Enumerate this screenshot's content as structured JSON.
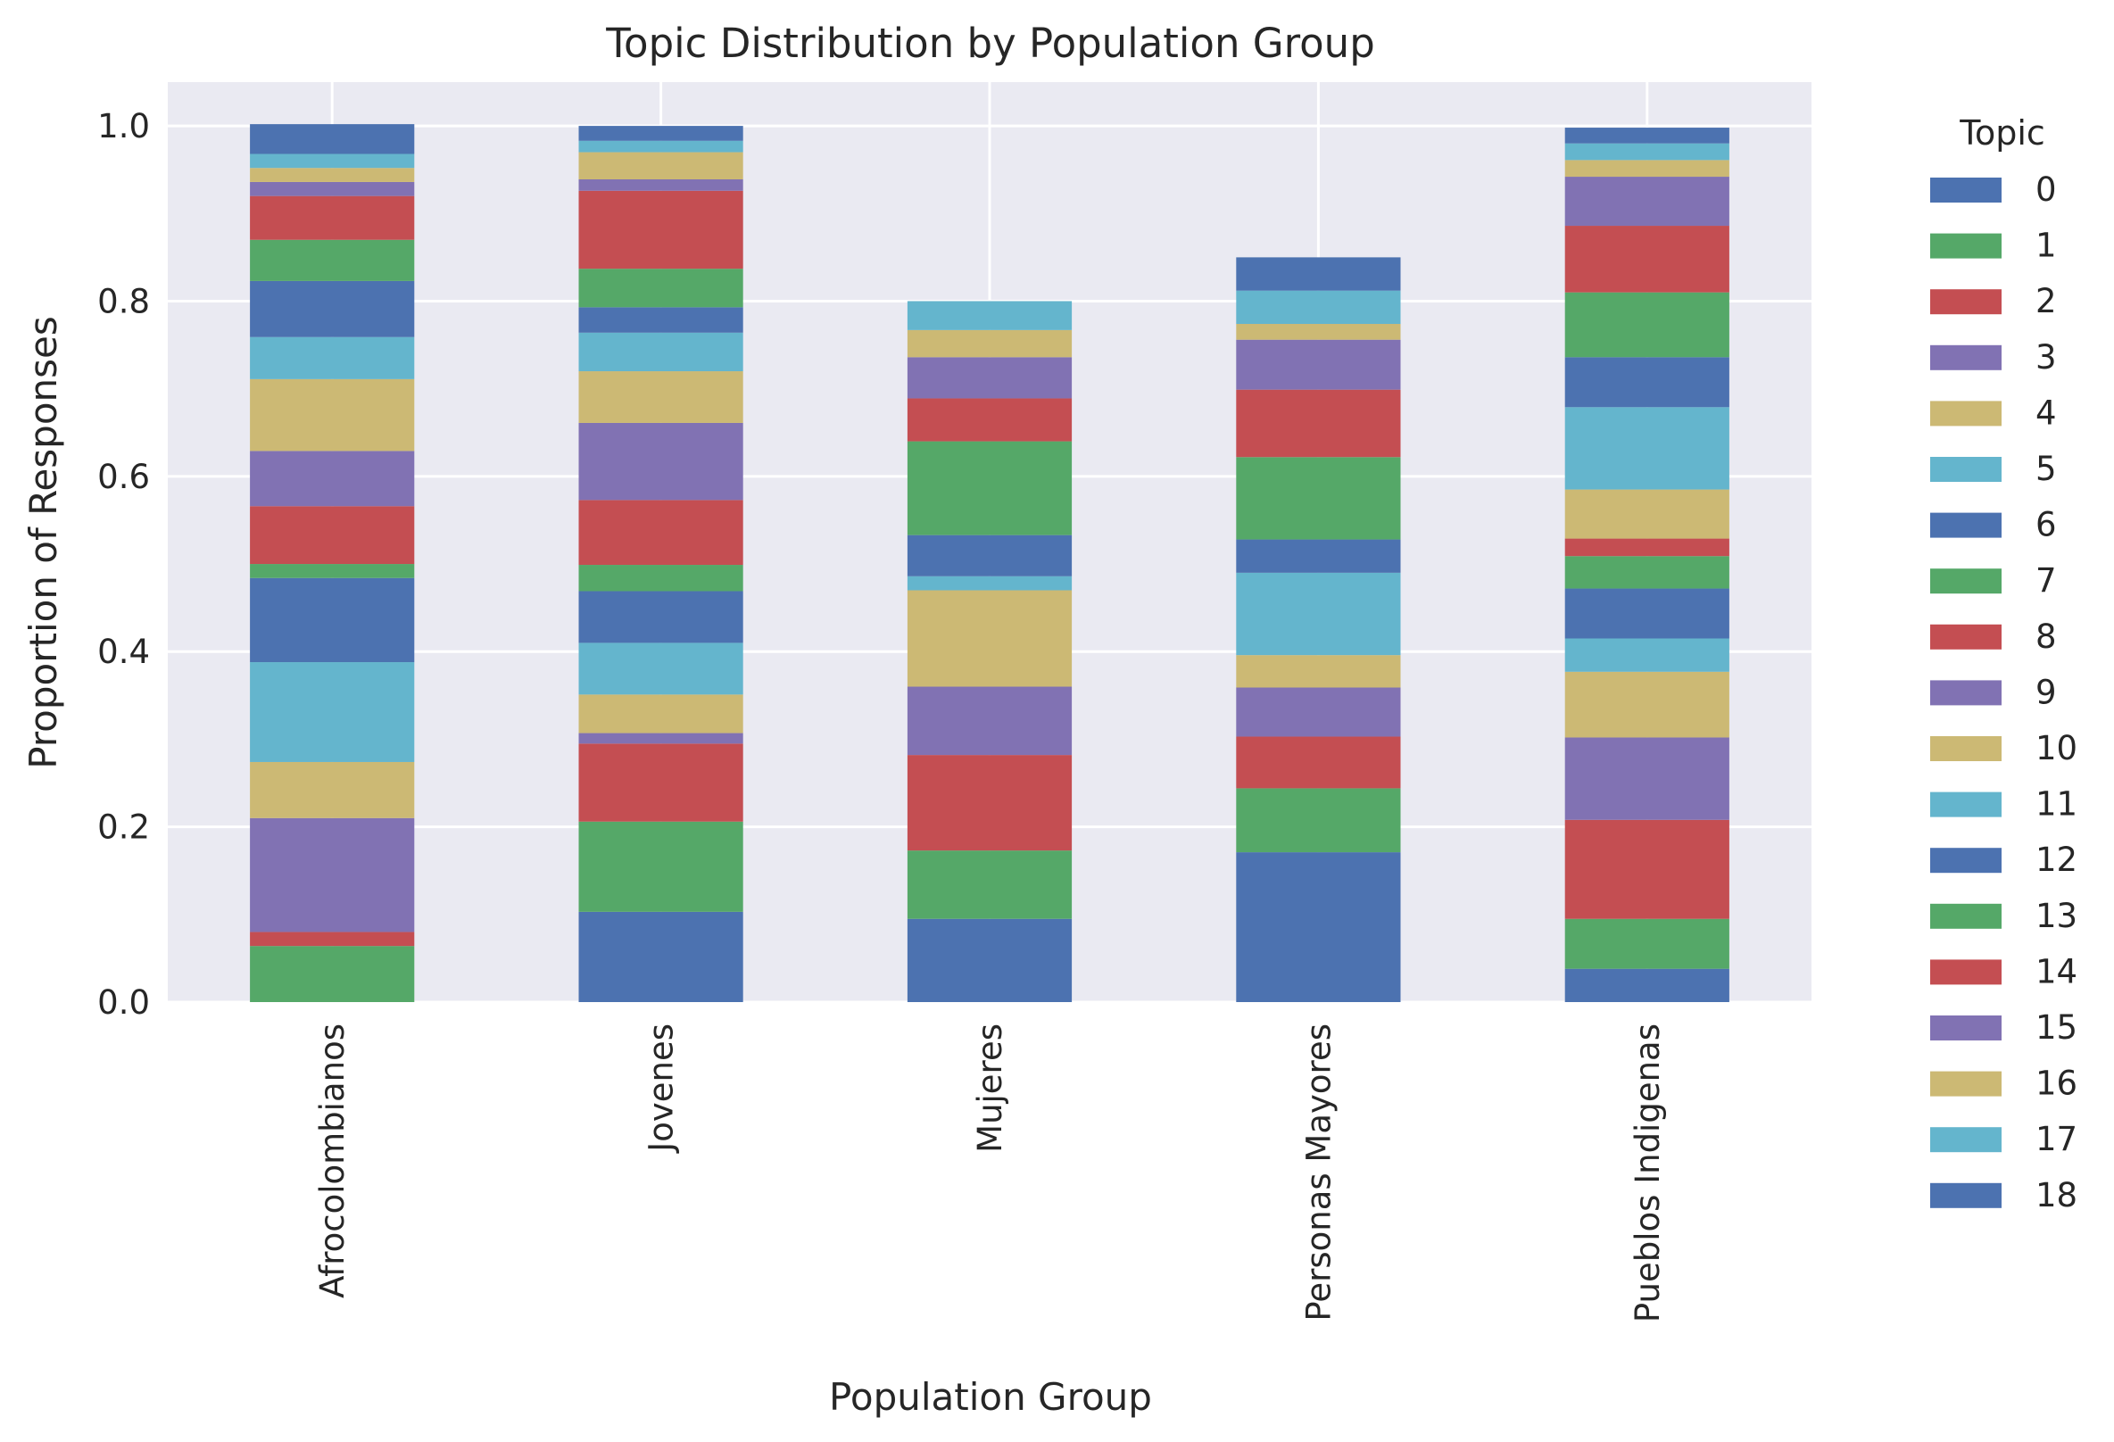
{
  "chart_data": {
    "type": "bar",
    "stacked": true,
    "title": "Topic Distribution by Population Group",
    "xlabel": "Population Group",
    "ylabel": "Proportion of Responses",
    "ylim": [
      0,
      1.05
    ],
    "yticks": [
      "0.0",
      "0.2",
      "0.4",
      "0.6",
      "0.8",
      "1.0"
    ],
    "ytick_values": [
      0,
      0.2,
      0.4,
      0.6,
      0.8,
      1.0
    ],
    "categories": [
      "Afrocolombianos",
      "Jovenes",
      "Mujeres",
      "Personas Mayores",
      "Pueblos Indigenas"
    ],
    "grid": true,
    "legend": {
      "title": "Topic",
      "placement": "outside-right"
    },
    "series": [
      {
        "name": "0",
        "color": "#4c72b0",
        "values": [
          0.0,
          0.103,
          0.095,
          0.171,
          0.038
        ]
      },
      {
        "name": "1",
        "color": "#55a868",
        "values": [
          0.064,
          0.103,
          0.078,
          0.073,
          0.057
        ]
      },
      {
        "name": "2",
        "color": "#c44e52",
        "values": [
          0.016,
          0.089,
          0.109,
          0.059,
          0.113
        ]
      },
      {
        "name": "3",
        "color": "#8172b3",
        "values": [
          0.13,
          0.012,
          0.078,
          0.056,
          0.094
        ]
      },
      {
        "name": "4",
        "color": "#ccb974",
        "values": [
          0.064,
          0.044,
          0.11,
          0.037,
          0.075
        ]
      },
      {
        "name": "5",
        "color": "#64b5cd",
        "values": [
          0.114,
          0.059,
          0.016,
          0.094,
          0.038
        ]
      },
      {
        "name": "6",
        "color": "#4c72b0",
        "values": [
          0.096,
          0.059,
          0.047,
          0.038,
          0.057
        ]
      },
      {
        "name": "7",
        "color": "#55a868",
        "values": [
          0.016,
          0.03,
          0.0,
          0.0,
          0.037
        ]
      },
      {
        "name": "8",
        "color": "#c44e52",
        "values": [
          0.066,
          0.074,
          0.0,
          0.0,
          0.02
        ]
      },
      {
        "name": "9",
        "color": "#8172b3",
        "values": [
          0.063,
          0.088,
          0.0,
          0.0,
          0.0
        ]
      },
      {
        "name": "10",
        "color": "#ccb974",
        "values": [
          0.082,
          0.059,
          0.0,
          0.0,
          0.056
        ]
      },
      {
        "name": "11",
        "color": "#64b5cd",
        "values": [
          0.048,
          0.044,
          0.0,
          0.0,
          0.094
        ]
      },
      {
        "name": "12",
        "color": "#4c72b0",
        "values": [
          0.064,
          0.029,
          0.0,
          0.0,
          0.057
        ]
      },
      {
        "name": "13",
        "color": "#55a868",
        "values": [
          0.047,
          0.044,
          0.107,
          0.094,
          0.074
        ]
      },
      {
        "name": "14",
        "color": "#c44e52",
        "values": [
          0.05,
          0.089,
          0.049,
          0.077,
          0.076
        ]
      },
      {
        "name": "15",
        "color": "#8172b3",
        "values": [
          0.016,
          0.013,
          0.047,
          0.057,
          0.056
        ]
      },
      {
        "name": "16",
        "color": "#ccb974",
        "values": [
          0.016,
          0.031,
          0.031,
          0.018,
          0.019
        ]
      },
      {
        "name": "17",
        "color": "#64b5cd",
        "values": [
          0.016,
          0.013,
          0.033,
          0.038,
          0.019
        ]
      },
      {
        "name": "18",
        "color": "#4c72b0",
        "values": [
          0.034,
          0.017,
          0.0,
          0.038,
          0.018
        ]
      }
    ]
  }
}
